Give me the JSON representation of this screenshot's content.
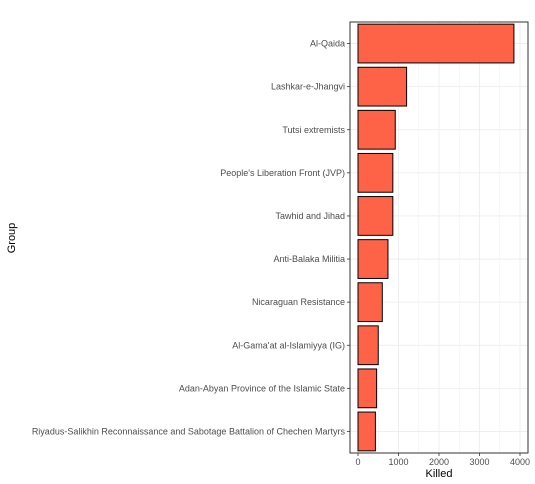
{
  "chart_data": {
    "type": "bar",
    "orientation": "horizontal",
    "title": "",
    "xlabel": "Killed",
    "ylabel": "Group",
    "xlim": [
      0,
      4000
    ],
    "x_ticks": [
      0,
      1000,
      2000,
      3000,
      4000
    ],
    "x_tick_labels": [
      "0",
      "1000",
      "2000",
      "3000",
      "4000"
    ],
    "grid": true,
    "legend": "none",
    "bar_color": "#ff6347",
    "bar_outline": "#000000",
    "categories": [
      "Al-Qaida",
      "Lashkar-e-Jhangvi",
      "Tutsi extremists",
      "People's Liberation Front (JVP)",
      "Tawhid and Jihad",
      "Anti-Balaka Militia",
      "Nicaraguan Resistance",
      "Al-Gama'at al-Islamiyya (IG)",
      "Adan-Abyan Province of the Islamic State",
      "Riyadus-Salikhin Reconnaissance and Sabotage Battalion of Chechen Martyrs"
    ],
    "values": [
      3850,
      1200,
      920,
      860,
      860,
      740,
      600,
      500,
      460,
      430
    ]
  }
}
